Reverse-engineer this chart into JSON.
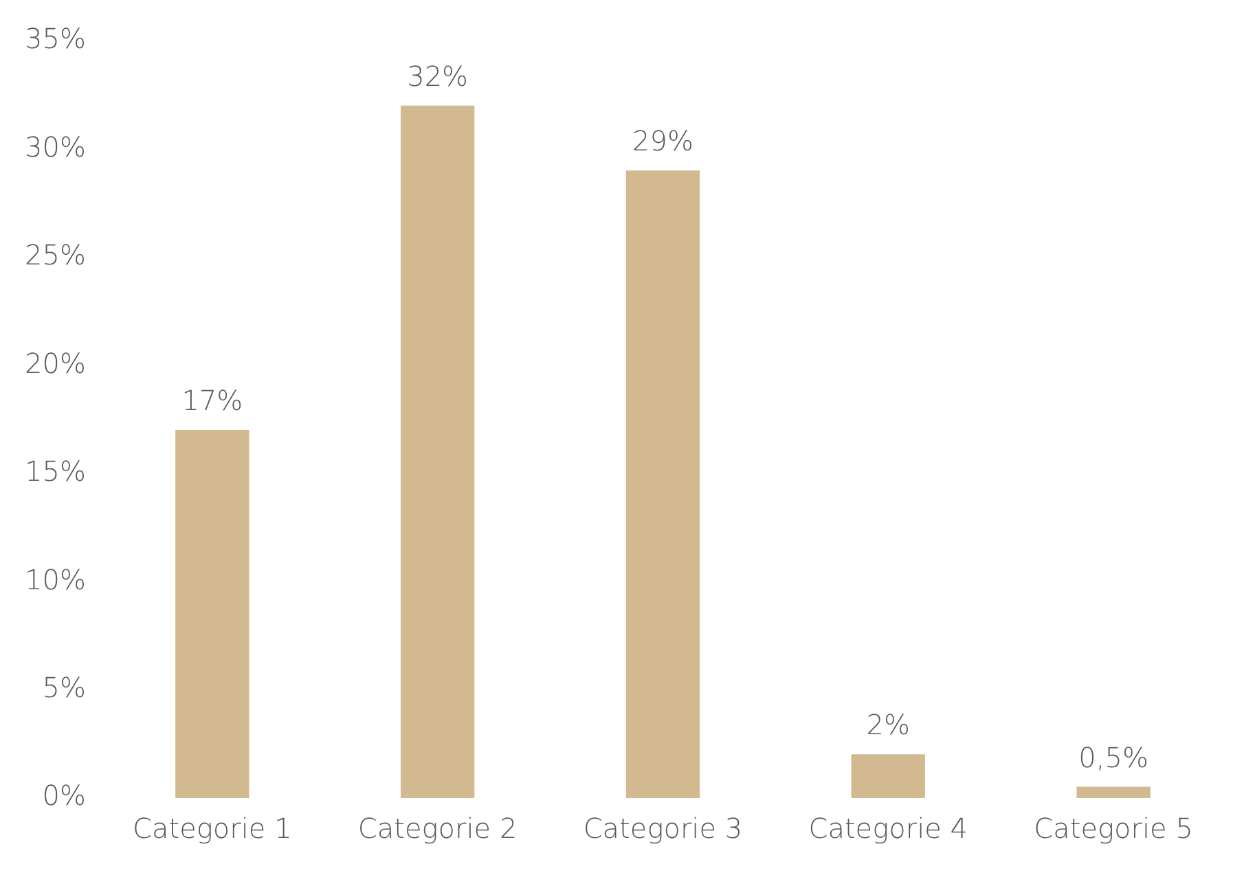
{
  "chart_data": {
    "type": "bar",
    "categories": [
      "Categorie 1",
      "Categorie 2",
      "Categorie 3",
      "Categorie 4",
      "Categorie 5"
    ],
    "values": [
      17,
      32,
      29,
      2,
      0.5
    ],
    "value_labels": [
      "17%",
      "32%",
      "29%",
      "2%",
      "0,5%"
    ],
    "color": "#d3b98f",
    "ylim": [
      0,
      35
    ],
    "yticks": [
      {
        "value": 0,
        "label": "0%"
      },
      {
        "value": 5,
        "label": "5%"
      },
      {
        "value": 10,
        "label": "10%"
      },
      {
        "value": 15,
        "label": "15%"
      },
      {
        "value": 20,
        "label": "20%"
      },
      {
        "value": 25,
        "label": "25%"
      },
      {
        "value": 30,
        "label": "30%"
      },
      {
        "value": 35,
        "label": "35%"
      }
    ],
    "grid": false,
    "legend": false
  }
}
